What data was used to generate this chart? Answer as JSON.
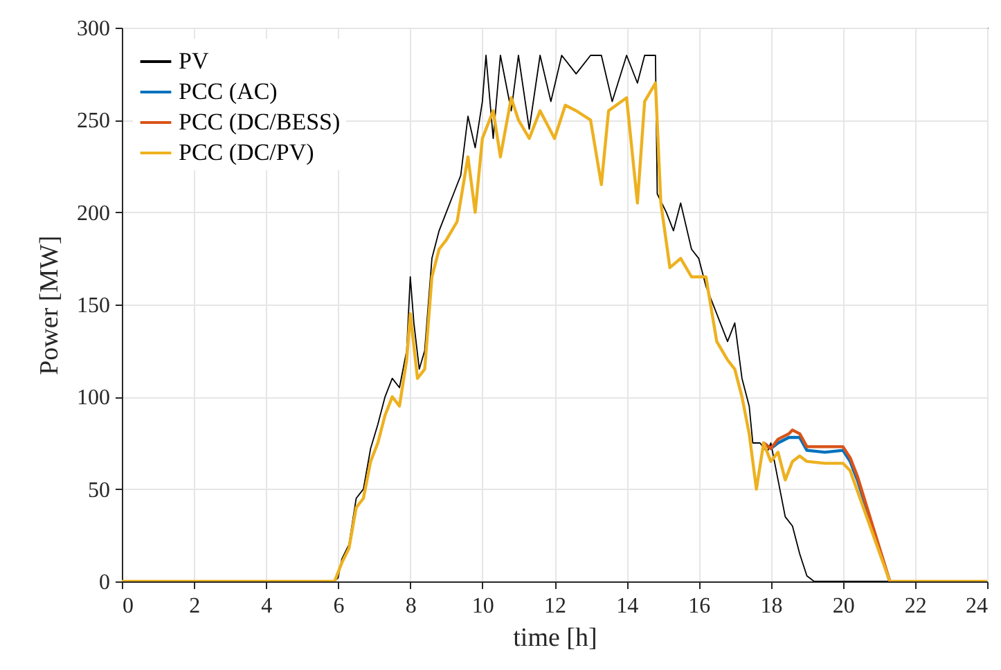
{
  "chart_data": {
    "type": "line",
    "xlabel": "time [h]",
    "ylabel": "Power [MW]",
    "xlim": [
      0,
      24
    ],
    "ylim": [
      0,
      300
    ],
    "xticks": [
      0,
      2,
      4,
      6,
      8,
      10,
      12,
      14,
      16,
      18,
      20,
      22,
      24
    ],
    "yticks": [
      0,
      50,
      100,
      150,
      200,
      250,
      300
    ],
    "grid": true,
    "legend": "top left",
    "marker": "none",
    "line_style": "solid",
    "series": [
      {
        "name": "PV",
        "color": "#000000",
        "x": [
          0,
          5.9,
          6.0,
          6.1,
          6.3,
          6.5,
          6.7,
          6.9,
          7.1,
          7.3,
          7.5,
          7.7,
          7.9,
          8.0,
          8.1,
          8.25,
          8.4,
          8.6,
          8.8,
          9.0,
          9.2,
          9.4,
          9.6,
          9.8,
          10.0,
          10.1,
          10.3,
          10.5,
          10.8,
          11.0,
          11.3,
          11.6,
          11.9,
          12.2,
          12.6,
          13.0,
          13.3,
          13.6,
          14.0,
          14.3,
          14.5,
          14.8,
          14.85,
          15.1,
          15.3,
          15.5,
          15.8,
          16.0,
          16.2,
          16.5,
          16.8,
          17.0,
          17.2,
          17.4,
          17.5,
          17.7,
          17.9,
          18.0,
          18.2,
          18.4,
          18.6,
          18.8,
          19.0,
          19.2,
          24
        ],
        "values": [
          0,
          0,
          2,
          12,
          20,
          45,
          50,
          72,
          85,
          100,
          110,
          105,
          125,
          165,
          140,
          115,
          125,
          175,
          190,
          200,
          210,
          220,
          252,
          235,
          260,
          285,
          240,
          285,
          255,
          285,
          245,
          285,
          260,
          285,
          275,
          285,
          285,
          260,
          285,
          270,
          285,
          285,
          210,
          200,
          190,
          205,
          180,
          175,
          160,
          145,
          130,
          140,
          110,
          95,
          75,
          75,
          70,
          75,
          55,
          35,
          30,
          15,
          3,
          0,
          0
        ]
      },
      {
        "name": "PCC (AC)",
        "color": "#0072bd",
        "x": [
          17.8,
          18.0,
          18.2,
          18.5,
          18.8,
          19.0,
          19.5,
          20.0,
          20.2,
          20.4,
          21.3
        ],
        "values": [
          75,
          72,
          75,
          78,
          78,
          71,
          70,
          71,
          65,
          55,
          0
        ]
      },
      {
        "name": "PCC (DC/BESS)",
        "color": "#d95319",
        "x": [
          17.8,
          18.0,
          18.2,
          18.5,
          18.6,
          18.8,
          19.0,
          19.5,
          20.0,
          20.2,
          20.4,
          21.3
        ],
        "values": [
          75,
          72,
          77,
          80,
          82,
          80,
          73,
          73,
          73,
          67,
          57,
          0
        ]
      },
      {
        "name": "PCC (DC/PV)",
        "color": "#edb120",
        "x": [
          0,
          5.9,
          6.1,
          6.3,
          6.5,
          6.7,
          6.9,
          7.1,
          7.3,
          7.5,
          7.7,
          7.9,
          8.0,
          8.2,
          8.4,
          8.6,
          8.8,
          9.0,
          9.3,
          9.6,
          9.8,
          10.0,
          10.3,
          10.5,
          10.8,
          11.0,
          11.3,
          11.6,
          12.0,
          12.3,
          12.6,
          13.0,
          13.3,
          13.5,
          14.0,
          14.3,
          14.5,
          14.8,
          14.95,
          15.2,
          15.5,
          15.8,
          16.2,
          16.5,
          16.8,
          17.0,
          17.2,
          17.4,
          17.6,
          17.8,
          18.0,
          18.2,
          18.4,
          18.6,
          18.8,
          19.0,
          19.5,
          20.0,
          20.2,
          21.3,
          24
        ],
        "values": [
          0,
          0,
          10,
          18,
          40,
          45,
          65,
          75,
          90,
          100,
          95,
          120,
          145,
          110,
          115,
          165,
          180,
          185,
          195,
          230,
          200,
          240,
          255,
          230,
          262,
          250,
          240,
          255,
          240,
          258,
          255,
          250,
          215,
          255,
          262,
          205,
          260,
          270,
          205,
          170,
          175,
          165,
          165,
          130,
          120,
          115,
          100,
          80,
          50,
          75,
          65,
          70,
          55,
          65,
          68,
          65,
          64,
          64,
          60,
          0,
          0
        ]
      }
    ]
  }
}
